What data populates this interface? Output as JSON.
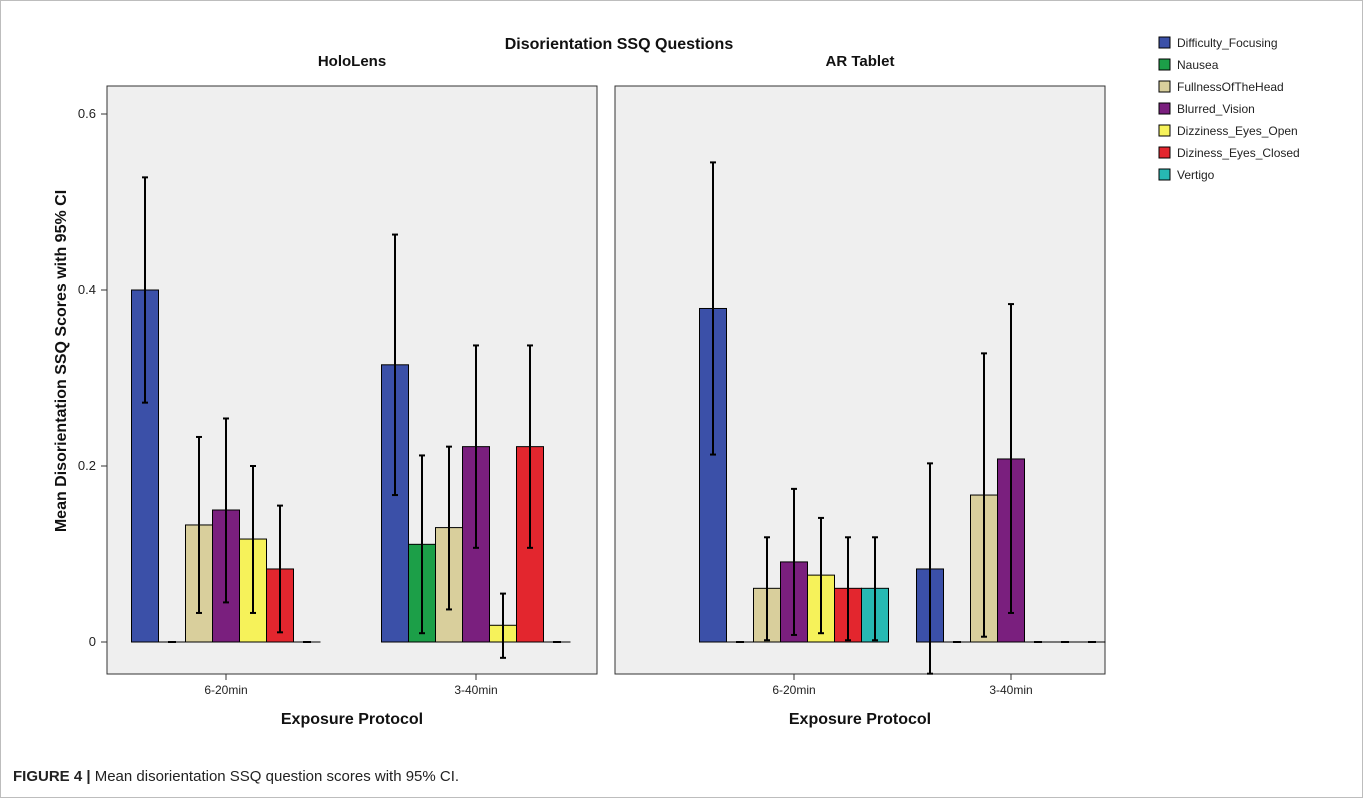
{
  "figure": {
    "caption_label": "FIGURE 4 |",
    "caption_text": " Mean disorientation SSQ question scores with 95% CI."
  },
  "chart_data": {
    "type": "bar",
    "title": "Disorientation SSQ Questions",
    "ylabel": "Mean Disorientation SSQ Scores with 95% CI",
    "xlabel": "Exposure Protocol",
    "ylim": [
      0,
      0.6
    ],
    "yticks": [
      0,
      0.2,
      0.4,
      0.6
    ],
    "ytick_labels": [
      "0",
      "0.2",
      "0.4",
      "0.6"
    ],
    "categories": [
      "6-20min",
      "3-40min"
    ],
    "legend_position": "right",
    "grid": false,
    "series_meta": [
      {
        "name": "Difficulty_Focusing",
        "color": "#3b50a8"
      },
      {
        "name": "Nausea",
        "color": "#1c9f48"
      },
      {
        "name": "FullnessOfTheHead",
        "color": "#d9cf9c"
      },
      {
        "name": "Blurred_Vision",
        "color": "#7a1f7e"
      },
      {
        "name": "Dizziness_Eyes_Open",
        "color": "#f6f25a"
      },
      {
        "name": "Diziness_Eyes_Closed",
        "color": "#e3262e"
      },
      {
        "name": "Vertigo",
        "color": "#27b9b3"
      }
    ],
    "panels": [
      {
        "title": "HoloLens",
        "series": [
          {
            "name": "Difficulty_Focusing",
            "values": [
              0.4,
              0.315
            ],
            "ci_low": [
              0.272,
              0.167
            ],
            "ci_high": [
              0.528,
              0.463
            ]
          },
          {
            "name": "Nausea",
            "values": [
              0.0,
              0.111
            ],
            "ci_low": [
              0.0,
              0.01
            ],
            "ci_high": [
              0.0,
              0.212
            ]
          },
          {
            "name": "FullnessOfTheHead",
            "values": [
              0.133,
              0.13
            ],
            "ci_low": [
              0.033,
              0.037
            ],
            "ci_high": [
              0.233,
              0.222
            ]
          },
          {
            "name": "Blurred_Vision",
            "values": [
              0.15,
              0.222
            ],
            "ci_low": [
              0.045,
              0.107
            ],
            "ci_high": [
              0.254,
              0.337
            ]
          },
          {
            "name": "Dizziness_Eyes_Open",
            "values": [
              0.117,
              0.019
            ],
            "ci_low": [
              0.033,
              -0.018
            ],
            "ci_high": [
              0.2,
              0.055
            ]
          },
          {
            "name": "Diziness_Eyes_Closed",
            "values": [
              0.083,
              0.222
            ],
            "ci_low": [
              0.011,
              0.107
            ],
            "ci_high": [
              0.155,
              0.337
            ]
          },
          {
            "name": "Vertigo",
            "values": [
              0.0,
              0.0
            ],
            "ci_low": [
              0.0,
              0.0
            ],
            "ci_high": [
              0.0,
              0.0
            ]
          }
        ]
      },
      {
        "title": "AR Tablet",
        "series": [
          {
            "name": "Difficulty_Focusing",
            "values": [
              0.379,
              0.083
            ],
            "ci_low": [
              0.213,
              -0.036
            ],
            "ci_high": [
              0.545,
              0.203
            ]
          },
          {
            "name": "Nausea",
            "values": [
              0.0,
              0.0
            ],
            "ci_low": [
              0.0,
              0.0
            ],
            "ci_high": [
              0.0,
              0.0
            ]
          },
          {
            "name": "FullnessOfTheHead",
            "values": [
              0.061,
              0.167
            ],
            "ci_low": [
              0.002,
              0.006
            ],
            "ci_high": [
              0.119,
              0.328
            ]
          },
          {
            "name": "Blurred_Vision",
            "values": [
              0.091,
              0.208
            ],
            "ci_low": [
              0.008,
              0.033
            ],
            "ci_high": [
              0.174,
              0.384
            ]
          },
          {
            "name": "Dizziness_Eyes_Open",
            "values": [
              0.076,
              0.0
            ],
            "ci_low": [
              0.01,
              0.0
            ],
            "ci_high": [
              0.141,
              0.0
            ]
          },
          {
            "name": "Diziness_Eyes_Closed",
            "values": [
              0.061,
              0.0
            ],
            "ci_low": [
              0.002,
              0.0
            ],
            "ci_high": [
              0.119,
              0.0
            ]
          },
          {
            "name": "Vertigo",
            "values": [
              0.061,
              0.0
            ],
            "ci_low": [
              0.002,
              0.0
            ],
            "ci_high": [
              0.119,
              0.0
            ]
          }
        ]
      }
    ]
  }
}
